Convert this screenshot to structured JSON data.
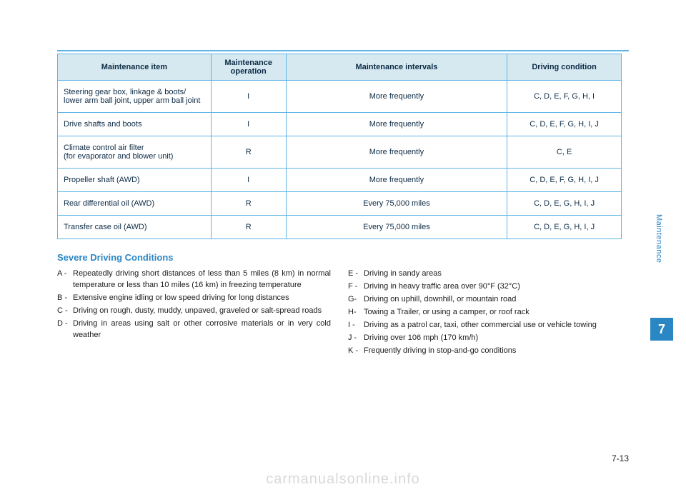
{
  "table": {
    "headers": [
      "Maintenance item",
      "Maintenance operation",
      "Maintenance intervals",
      "Driving condition"
    ],
    "rows": [
      {
        "item": "Steering gear box, linkage & boots/ lower arm ball joint, upper arm ball joint",
        "op": "I",
        "interval": "More frequently",
        "cond": "C, D, E, F, G, H, I"
      },
      {
        "item": "Drive shafts and boots",
        "op": "I",
        "interval": "More frequently",
        "cond": "C, D, E, F, G, H, I, J"
      },
      {
        "item": "Climate control air filter\n(for evaporator and blower unit)",
        "op": "R",
        "interval": "More frequently",
        "cond": "C, E"
      },
      {
        "item": "Propeller shaft (AWD)",
        "op": "I",
        "interval": "More frequently",
        "cond": "C, D, E, F, G, H, I, J"
      },
      {
        "item": "Rear differential oil (AWD)",
        "op": "R",
        "interval": "Every 75,000 miles",
        "cond": "C, D, E, G, H, I, J"
      },
      {
        "item": "Transfer case oil (AWD)",
        "op": "R",
        "interval": "Every 75,000 miles",
        "cond": "C, D, E, G, H, I, J"
      }
    ]
  },
  "section_title": "Severe Driving Conditions",
  "conditions_left": [
    {
      "letter": "A -",
      "text": "Repeatedly driving short distances of less than 5 miles (8 km) in normal temperature or less than 10 miles (16 km) in freezing temperature"
    },
    {
      "letter": "B -",
      "text": "Extensive engine idling or low speed driving for long distances"
    },
    {
      "letter": "C -",
      "text": "Driving on rough, dusty, muddy, unpaved, graveled or salt-spread roads"
    },
    {
      "letter": "D -",
      "text": "Driving in areas using salt or other corrosive materials or in very cold weather"
    }
  ],
  "conditions_right": [
    {
      "letter": "E -",
      "text": "Driving in sandy areas"
    },
    {
      "letter": "F -",
      "text": "Driving in heavy traffic area over 90°F (32°C)"
    },
    {
      "letter": "G-",
      "text": "Driving on uphill, downhill, or mountain road"
    },
    {
      "letter": "H-",
      "text": "Towing a Trailer, or using a camper, or roof rack"
    },
    {
      "letter": "I  -",
      "text": "Driving as a patrol car, taxi, other commercial use or vehicle towing"
    },
    {
      "letter": "J -",
      "text": "Driving over 106 mph (170 km/h)"
    },
    {
      "letter": "K -",
      "text": "Frequently driving in stop-and-go conditions"
    }
  ],
  "side_label": "Maintenance",
  "side_badge": "7",
  "page_num": "7-13",
  "watermark": "carmanualsonline.info"
}
